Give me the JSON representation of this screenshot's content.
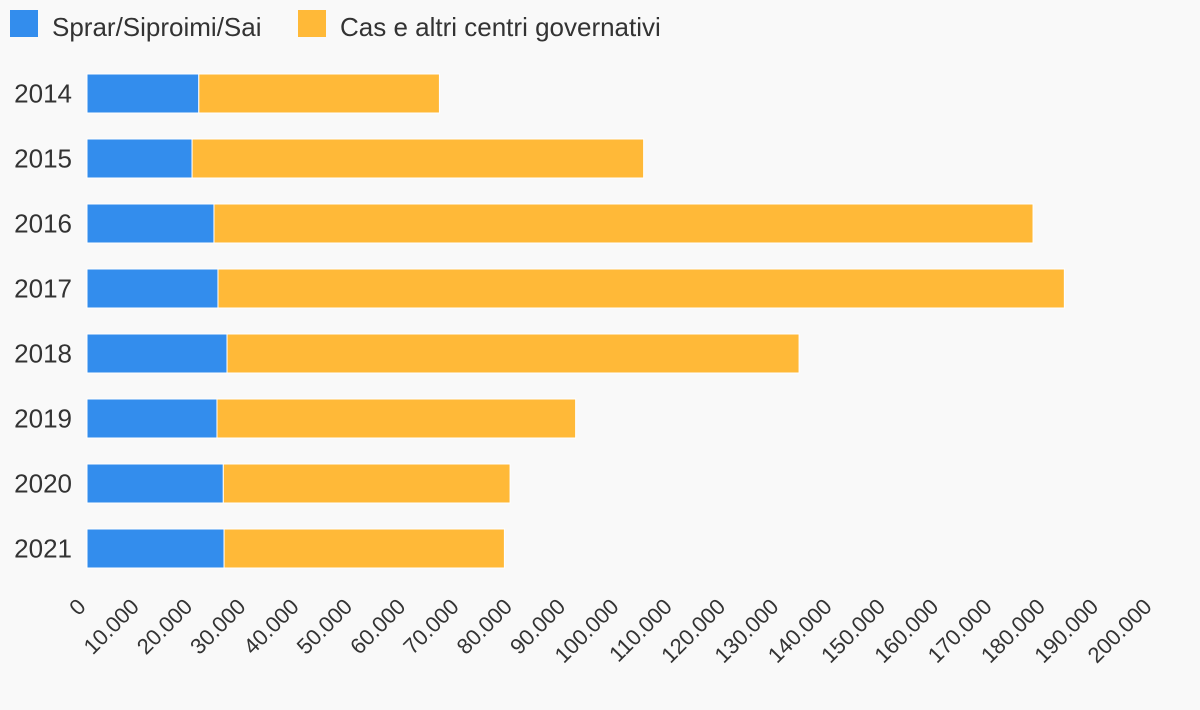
{
  "chart_data": {
    "type": "bar",
    "orientation": "horizontal",
    "stacked": true,
    "categories": [
      "2014",
      "2015",
      "2016",
      "2017",
      "2018",
      "2019",
      "2020",
      "2021"
    ],
    "series": [
      {
        "name": "Sprar/Siproimi/Sai",
        "color": "#338ded",
        "values": [
          20975,
          19715,
          23822,
          24573,
          26277,
          24387,
          25574,
          25720
        ]
      },
      {
        "name": "Cas e altri centri governativi",
        "color": "#ffb938",
        "values": [
          45145,
          84720,
          153670,
          158795,
          107320,
          67290,
          53800,
          52590
        ]
      }
    ],
    "xlim": [
      0,
      200000
    ],
    "x_ticks": [
      "0",
      "10.000",
      "20.000",
      "30.000",
      "40.000",
      "50.000",
      "60.000",
      "70.000",
      "80.000",
      "90.000",
      "100.000",
      "110.000",
      "120.000",
      "130.000",
      "140.000",
      "150.000",
      "160.000",
      "170.000",
      "180.000",
      "190.000",
      "200.000"
    ],
    "legend_position": "top-left",
    "grid": false
  }
}
